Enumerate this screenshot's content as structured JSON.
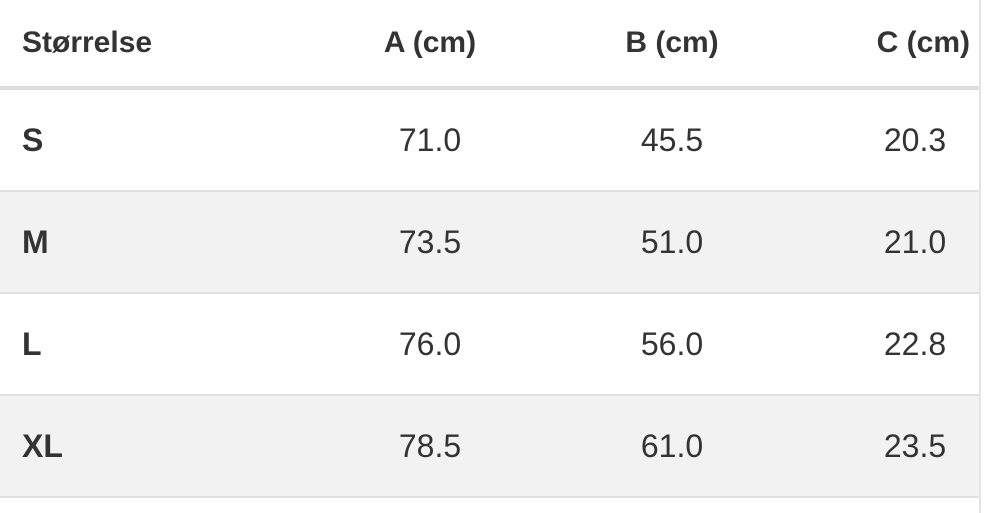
{
  "table": {
    "header": [
      "Størrelse",
      "A (cm)",
      "B (cm)",
      "C (cm)"
    ],
    "rows": [
      [
        "S",
        "71.0",
        "45.5",
        "20.3"
      ],
      [
        "M",
        "73.5",
        "51.0",
        "21.0"
      ],
      [
        "L",
        "76.0",
        "56.0",
        "22.8"
      ],
      [
        "XL",
        "78.5",
        "61.0",
        "23.5"
      ]
    ]
  }
}
